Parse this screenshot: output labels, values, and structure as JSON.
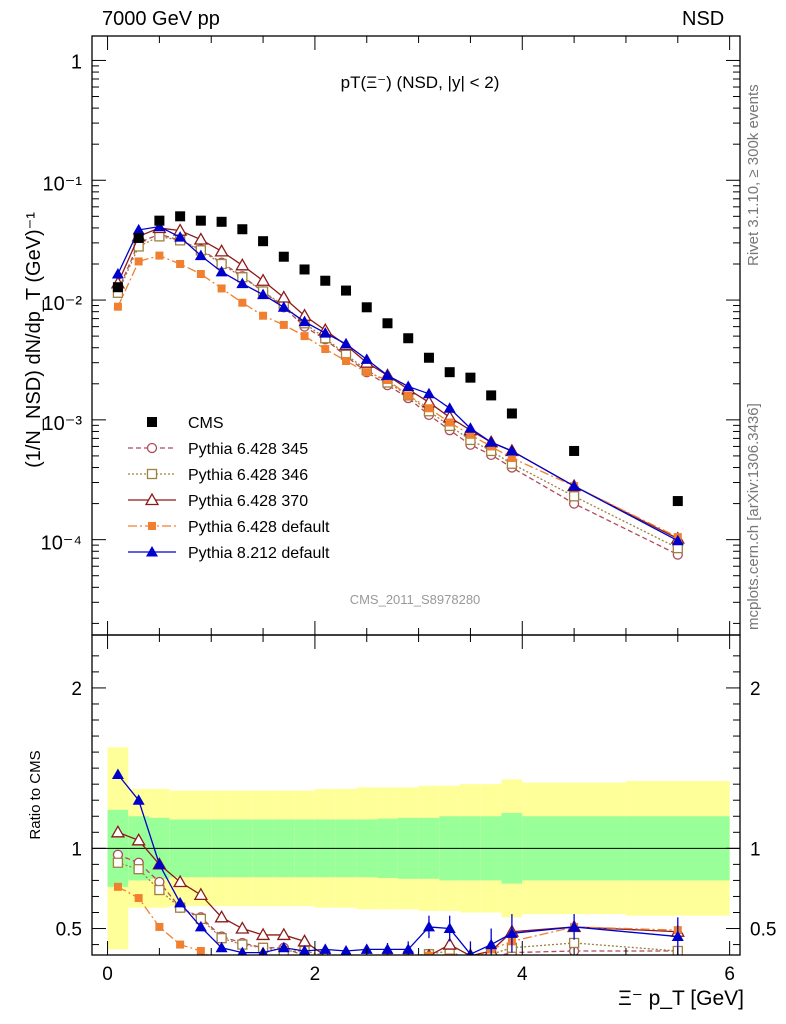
{
  "header": {
    "left": "7000 GeV pp",
    "right": "NSD"
  },
  "side_labels": {
    "rivet": "Rivet 3.1.10, ≥ 300k events",
    "mcplots": "mcplots.cern.ch [arXiv:1306.3436]"
  },
  "colors": {
    "data": "#000000",
    "p345": "#b04a5a",
    "p346": "#a08040",
    "p370": "#8b1a1a",
    "pdef": "#f08030",
    "p8": "#0000cc",
    "band_inner": "#99ff99",
    "band_outer": "#ffff99"
  },
  "chart_data": {
    "type": "scatter",
    "title": "pT(Ξ⁻) (NSD, |y| < 2)",
    "watermark": "CMS_2011_S8978280",
    "xlabel": "Ξ⁻ p_T [GeV]",
    "ylabel": "(1/N_NSD) dN/dp_T (GeV)⁻¹",
    "ratio_ylabel": "Ratio to CMS",
    "xlim": [
      -0.15,
      6.1
    ],
    "ylim": [
      1.6e-05,
      1.6
    ],
    "ratio_ylim": [
      0.335,
      2.33
    ],
    "yscale": "log",
    "x_ticks": [
      "0",
      "2",
      "4",
      "6"
    ],
    "y_ticks": [
      "1",
      "10⁻¹",
      "10⁻²",
      "10⁻³",
      "10⁻⁴"
    ],
    "ratio_ticks": [
      "0.5",
      "1",
      "2"
    ],
    "x": [
      0.1,
      0.3,
      0.5,
      0.7,
      0.9,
      1.1,
      1.3,
      1.5,
      1.7,
      1.9,
      2.1,
      2.3,
      2.5,
      2.7,
      2.9,
      3.1,
      3.3,
      3.5,
      3.7,
      3.9,
      4.5,
      5.5
    ],
    "x_bins": [
      [
        0.0,
        0.2
      ],
      [
        0.2,
        0.4
      ],
      [
        0.4,
        0.6
      ],
      [
        0.6,
        0.8
      ],
      [
        0.8,
        1.0
      ],
      [
        1.0,
        1.2
      ],
      [
        1.2,
        1.4
      ],
      [
        1.4,
        1.6
      ],
      [
        1.6,
        1.8
      ],
      [
        1.8,
        2.0
      ],
      [
        2.0,
        2.2
      ],
      [
        2.2,
        2.4
      ],
      [
        2.4,
        2.6
      ],
      [
        2.6,
        2.8
      ],
      [
        2.8,
        3.0
      ],
      [
        3.0,
        3.2
      ],
      [
        3.2,
        3.4
      ],
      [
        3.4,
        3.6
      ],
      [
        3.6,
        3.8
      ],
      [
        3.8,
        4.0
      ],
      [
        4.0,
        5.0
      ],
      [
        5.0,
        6.0
      ]
    ],
    "data_series": {
      "name": "CMS",
      "values": [
        0.0128,
        0.033,
        0.046,
        0.05,
        0.046,
        0.045,
        0.039,
        0.031,
        0.023,
        0.018,
        0.0145,
        0.012,
        0.0087,
        0.0064,
        0.0048,
        0.0033,
        0.0025,
        0.00225,
        0.0016,
        0.00113,
        0.00055,
        0.00021
      ]
    },
    "ratio_bands": {
      "inner": [
        0.24,
        0.2,
        0.19,
        0.18,
        0.18,
        0.18,
        0.18,
        0.18,
        0.18,
        0.18,
        0.18,
        0.18,
        0.18,
        0.185,
        0.19,
        0.19,
        0.2,
        0.2,
        0.2,
        0.22,
        0.2,
        0.2
      ],
      "outer": [
        0.63,
        0.37,
        0.37,
        0.36,
        0.36,
        0.36,
        0.36,
        0.36,
        0.36,
        0.36,
        0.37,
        0.37,
        0.38,
        0.38,
        0.38,
        0.39,
        0.39,
        0.4,
        0.4,
        0.43,
        0.41,
        0.42
      ]
    },
    "series": [
      {
        "name": "Pythia 6.428 345",
        "color_key": "p345",
        "marker": "circle-open",
        "dash": "5,3",
        "values": [
          0.0119,
          0.03,
          0.0355,
          0.0315,
          0.0264,
          0.0205,
          0.0158,
          0.0118,
          0.0087,
          0.006,
          0.0047,
          0.0034,
          0.0025,
          0.00195,
          0.00152,
          0.0011,
          0.00082,
          0.00062,
          0.00051,
          0.0004,
          0.0002,
          7.5e-05
        ],
        "ratio": [
          0.96,
          0.91,
          0.79,
          0.63,
          0.57,
          0.45,
          0.41,
          0.38,
          0.38,
          0.33,
          0.32,
          0.28,
          0.29,
          0.31,
          0.32,
          0.33,
          0.33,
          0.28,
          0.32,
          0.35,
          0.36,
          0.36
        ]
      },
      {
        "name": "Pythia 6.428 346",
        "color_key": "p346",
        "marker": "square-open",
        "dash": "2,2",
        "values": [
          0.0115,
          0.028,
          0.034,
          0.0315,
          0.026,
          0.02,
          0.0155,
          0.0118,
          0.009,
          0.0064,
          0.0048,
          0.0035,
          0.0026,
          0.00205,
          0.0016,
          0.00118,
          0.00089,
          0.00068,
          0.00055,
          0.00043,
          0.00023,
          8.5e-05
        ],
        "ratio": [
          0.91,
          0.87,
          0.74,
          0.63,
          0.56,
          0.44,
          0.4,
          0.38,
          0.36,
          0.36,
          0.33,
          0.3,
          0.3,
          0.32,
          0.33,
          0.34,
          0.36,
          0.3,
          0.34,
          0.38,
          0.41,
          0.36
        ]
      },
      {
        "name": "Pythia 6.428 370",
        "color_key": "p370",
        "marker": "triangle-open",
        "dash": "",
        "values": [
          0.0138,
          0.034,
          0.04,
          0.038,
          0.032,
          0.0255,
          0.0195,
          0.0145,
          0.0105,
          0.0074,
          0.0056,
          0.0042,
          0.003,
          0.00235,
          0.0018,
          0.0014,
          0.00105,
          0.00082,
          0.00065,
          0.00055,
          0.00028,
          0.000102
        ],
        "ratio": [
          1.1,
          1.05,
          0.9,
          0.79,
          0.71,
          0.57,
          0.5,
          0.46,
          0.46,
          0.42,
          0.33,
          0.31,
          0.3,
          0.31,
          0.32,
          0.33,
          0.4,
          0.33,
          0.36,
          0.48,
          0.51,
          0.48
        ]
      },
      {
        "name": "Pythia 6.428 default",
        "color_key": "pdef",
        "marker": "square-filled",
        "dash": "9,3,2,3",
        "values": [
          0.0088,
          0.021,
          0.0235,
          0.02,
          0.0165,
          0.0125,
          0.0095,
          0.0074,
          0.0062,
          0.005,
          0.0039,
          0.0031,
          0.0025,
          0.00215,
          0.0016,
          0.00125,
          0.00095,
          0.00075,
          0.0006,
          0.00048,
          0.00028,
          0.000105
        ],
        "ratio": [
          0.76,
          0.69,
          0.51,
          0.4,
          0.36,
          0.28,
          0.24,
          0.24,
          0.27,
          0.28,
          0.27,
          0.26,
          0.29,
          0.33,
          0.33,
          0.33,
          0.32,
          0.3,
          0.37,
          0.42,
          0.51,
          0.49
        ]
      },
      {
        "name": "Pythia 8.212 default",
        "color_key": "p8",
        "marker": "triangle-filled",
        "dash": "",
        "values": [
          0.0165,
          0.0385,
          0.041,
          0.0335,
          0.0235,
          0.0172,
          0.0137,
          0.0111,
          0.0087,
          0.0066,
          0.0053,
          0.0043,
          0.0032,
          0.00235,
          0.0019,
          0.00165,
          0.00125,
          0.00085,
          0.00065,
          0.00055,
          0.00028,
          9.8e-05
        ],
        "ratio": [
          1.46,
          1.3,
          0.9,
          0.66,
          0.51,
          0.38,
          0.35,
          0.35,
          0.38,
          0.36,
          0.37,
          0.36,
          0.37,
          0.37,
          0.37,
          0.51,
          0.5,
          0.34,
          0.4,
          0.47,
          0.51,
          0.45
        ],
        "ratio_err": [
          0.02,
          0.02,
          0.02,
          0.02,
          0.02,
          0.02,
          0.02,
          0.02,
          0.02,
          0.02,
          0.02,
          0.02,
          0.03,
          0.04,
          0.05,
          0.07,
          0.08,
          0.08,
          0.1,
          0.12,
          0.08,
          0.12
        ]
      }
    ]
  }
}
